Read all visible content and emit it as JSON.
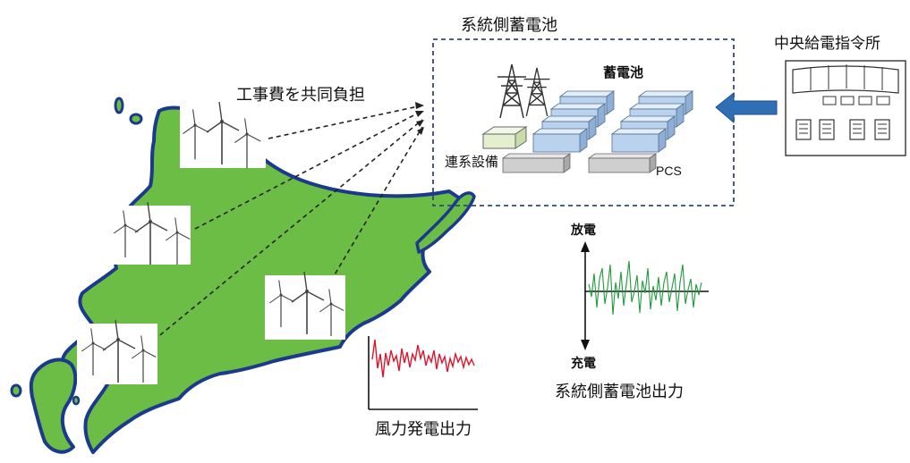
{
  "labels": {
    "battery_system_title": "系統側蓄電池",
    "dispatch_center": "中央給電指令所",
    "cost_sharing": "工事費を共同負担",
    "battery": "蓄電池",
    "grid_connection": "連系設備",
    "pcs": "PCS",
    "discharge": "放電",
    "charge": "充電",
    "battery_output": "系統側蓄電池出力",
    "wind_output": "風力発電出力"
  },
  "colors": {
    "land": "#6cbd45",
    "coast": "#1b3a8c",
    "dashed_box": "#2e4a7a",
    "arrow": "#2f6fb5",
    "battery_cells": "#b9d2ee",
    "pcs_units": "#cfcfcf",
    "transformer": "#e3efcf",
    "wind_series": "#e0142a",
    "battery_series": "#1f9a3b"
  },
  "icons": [
    "wind-turbine-icon",
    "transmission-tower-icon",
    "control-room-icon",
    "arrow-left-icon"
  ]
}
